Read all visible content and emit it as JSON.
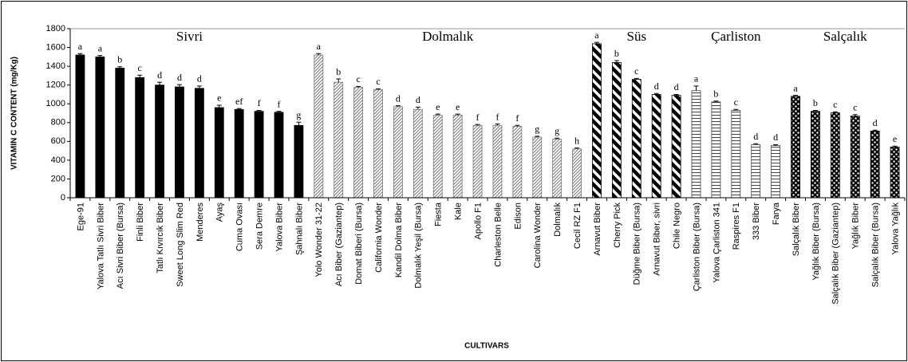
{
  "chart_data": {
    "type": "bar",
    "y_label": "VITAMIN C CONTENT (mg/Kg)",
    "x_label": "CULTIVARS",
    "ylim": [
      0,
      1800
    ],
    "yticks": [
      0,
      200,
      400,
      600,
      800,
      1000,
      1200,
      1400,
      1600,
      1800
    ],
    "grid": false,
    "series": [
      {
        "name": "Sivri",
        "pattern": "solid",
        "categories": [
          "Ege-91",
          "Yalova Tatlı Sivri Biber",
          "Acı Sivri Biber (Bursa)",
          "Finli Biber",
          "Tatlı Kıvırcık Biber",
          "Sweet Long Slim Red",
          "Menderes",
          "Ayaş",
          "Cuma Ovası",
          "Sera Demre",
          "Yalova Biber",
          "Şahnalı Biber"
        ],
        "values": [
          1520,
          1500,
          1380,
          1280,
          1200,
          1180,
          1165,
          960,
          940,
          920,
          910,
          770
        ],
        "errors": [
          15,
          15,
          15,
          25,
          30,
          25,
          25,
          25,
          10,
          10,
          10,
          35
        ],
        "letters": [
          "a",
          "a",
          "b",
          "c",
          "d",
          "d",
          "d",
          "e",
          "ef",
          "f",
          "f",
          "g"
        ]
      },
      {
        "name": "Dolmalık",
        "pattern": "hatch",
        "categories": [
          "Yolo Wonder 31-22",
          "Acı Biber (Gaziantep)",
          "Domat Biberi (Bursa)",
          "California Wonder",
          "Kandil Dolma Biber",
          "Dolmalık Yeşil (Bursa)",
          "Fiesta",
          "Kale",
          "Apollo F1",
          "Charleston Belle",
          "Edison",
          "Carolina Wonder",
          "Dolmalık",
          "Cecil RZ F1"
        ],
        "values": [
          1520,
          1230,
          1175,
          1150,
          970,
          940,
          880,
          880,
          770,
          770,
          760,
          645,
          625,
          520
        ],
        "errors": [
          15,
          35,
          10,
          10,
          10,
          25,
          10,
          10,
          10,
          15,
          10,
          10,
          10,
          10
        ],
        "letters": [
          "a",
          "b",
          "c",
          "c",
          "d",
          "d",
          "e",
          "e",
          "f",
          "f",
          "f",
          "g",
          "g",
          "h"
        ]
      },
      {
        "name": "Süs",
        "pattern": "stripe",
        "categories": [
          "Arnavut Biber",
          "Cherry Pick",
          "Düğme Biber (Bursa)",
          "Arnavut Biber, sivri",
          "Chile Negro"
        ],
        "values": [
          1640,
          1440,
          1260,
          1100,
          1090
        ],
        "errors": [
          15,
          20,
          10,
          10,
          10
        ],
        "letters": [
          "a",
          "b",
          "c",
          "d",
          "d"
        ]
      },
      {
        "name": "Çarliston",
        "pattern": "horizontal",
        "categories": [
          "Çarliston Biber (Bursa)",
          "Yalova Çarliston 341",
          "Raspires F1",
          "333 Biber",
          "Farya"
        ],
        "values": [
          1140,
          1020,
          930,
          565,
          555
        ],
        "errors": [
          50,
          10,
          10,
          10,
          10
        ],
        "letters": [
          "a",
          "b",
          "c",
          "d",
          "d"
        ]
      },
      {
        "name": "Salçalık",
        "pattern": "dots",
        "categories": [
          "Salçalık Biber",
          "Yağlık Biber (Bursa)",
          "Salçalık Biber (Gaziantep)",
          "Yağlık Biber",
          "Salçalık Biber (Bursa)",
          "Yalova Yağlık"
        ],
        "values": [
          1080,
          920,
          905,
          870,
          710,
          540
        ],
        "errors": [
          10,
          10,
          10,
          15,
          10,
          10
        ],
        "letters": [
          "a",
          "b",
          "c",
          "c",
          "d",
          "e"
        ]
      }
    ]
  }
}
